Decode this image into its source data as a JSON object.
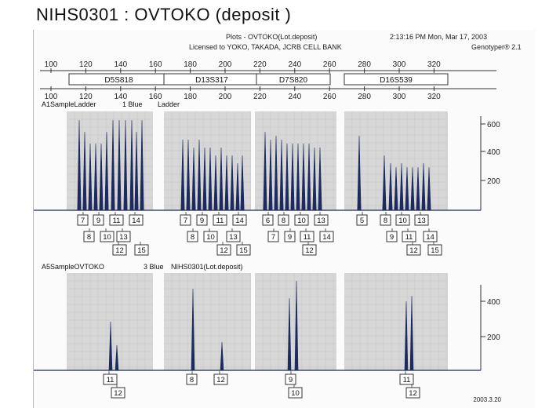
{
  "page_title": "NIHS0301 : OVTOKO (deposit )",
  "header": {
    "plot_title": "Plots - OVTOKO(Lot.deposit)",
    "timestamp": "2:13:16 PM  Mon, Mar 17, 2003",
    "license": "Licensed to YOKO, TAKADA, JCRB CELL BANK",
    "software": "Genotyper® 2.1"
  },
  "top_axis": {
    "labels": [
      "100",
      "120",
      "140",
      "160",
      "180",
      "200",
      "220",
      "240",
      "260",
      "280",
      "300",
      "320"
    ]
  },
  "bottom_axis": {
    "labels": [
      "100",
      "120",
      "140",
      "160",
      "180",
      "200",
      "220",
      "240",
      "260",
      "280",
      "300",
      "320"
    ]
  },
  "markers": [
    "D5S818",
    "D13S317",
    "D7S820",
    "D16S539"
  ],
  "panel1": {
    "sample": "A1SampleLadder",
    "dye": "1 Blue",
    "desc": "Ladder",
    "y_labels": [
      "600",
      "400",
      "200"
    ],
    "alleles_row1": [
      [
        "7",
        "9",
        "11",
        "14"
      ],
      [
        "7",
        "9",
        "11",
        "14"
      ],
      [
        "6",
        "8",
        "10",
        "13"
      ],
      [
        "5",
        "8",
        "10",
        "13"
      ]
    ],
    "alleles_row2": [
      [
        "8",
        "10",
        "13"
      ],
      [
        "8",
        "10",
        "13"
      ],
      [
        "7",
        "9",
        "11",
        "14"
      ],
      [
        "9",
        "11",
        "14"
      ]
    ],
    "alleles_row3": [
      [
        "12",
        "15"
      ],
      [
        "12",
        "15"
      ],
      [
        "12"
      ],
      [
        "12",
        "15"
      ]
    ]
  },
  "panel2": {
    "sample": "A5SampleOVTOKO",
    "dye": "3 Blue",
    "desc": "NIHS0301(Lot.deposit)",
    "y_labels": [
      "400",
      "200"
    ],
    "alleles_row1": [
      [
        "11"
      ],
      [
        "8",
        "12"
      ],
      [
        "9"
      ],
      [
        "11"
      ]
    ],
    "alleles_row2": [
      [
        "12"
      ],
      [],
      [
        "10"
      ],
      [
        "12"
      ]
    ]
  },
  "date_stamp": "2003.3.20",
  "colors": {
    "peak": "#1c2a5e",
    "shade": "#d7d7d7",
    "grid": "#c4c4c4"
  }
}
